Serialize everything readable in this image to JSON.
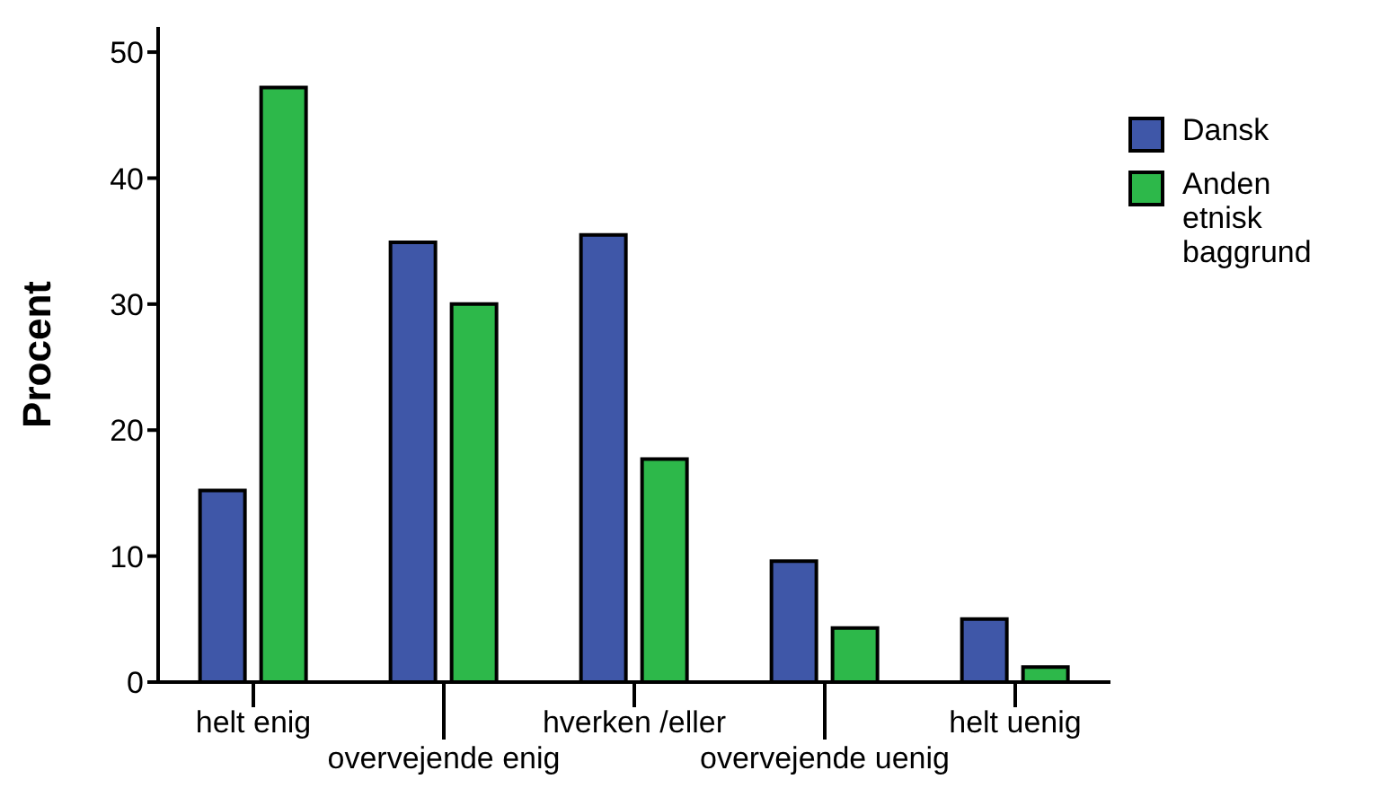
{
  "chart_data": {
    "type": "bar",
    "ylabel": "Procent",
    "categories": [
      "helt enig",
      "overvejende enig",
      "hverken /eller",
      "overvejende uenig",
      "helt uenig"
    ],
    "series": [
      {
        "name": "Dansk",
        "color": "#3f57a8",
        "values": [
          15.2,
          34.9,
          35.5,
          9.6,
          5.0
        ]
      },
      {
        "name": "Anden etnisk baggrund",
        "color": "#2db84a",
        "values": [
          47.2,
          30.0,
          17.7,
          4.3,
          1.2
        ]
      }
    ],
    "ylim": [
      0,
      52
    ],
    "yticks": [
      0,
      10,
      20,
      30,
      40,
      50
    ],
    "grid": false,
    "legend": "top right"
  }
}
